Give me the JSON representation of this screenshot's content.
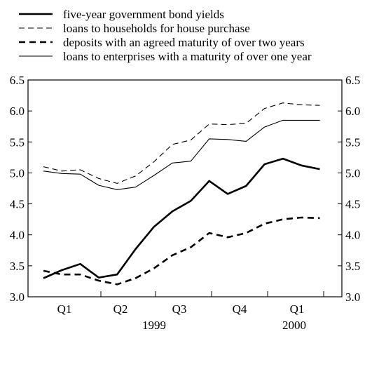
{
  "chart_data": {
    "type": "line",
    "title": "",
    "xlabel": "",
    "ylabel": "",
    "x_axis": {
      "quarter_labels": [
        "Q1",
        "Q2",
        "Q3",
        "Q4",
        "Q1"
      ],
      "year_labels": [
        "1999",
        "2000"
      ],
      "months": [
        "1999-01",
        "1999-02",
        "1999-03",
        "1999-04",
        "1999-05",
        "1999-06",
        "1999-07",
        "1999-08",
        "1999-09",
        "1999-10",
        "1999-11",
        "1999-12",
        "2000-01",
        "2000-02",
        "2000-03",
        "2000-04",
        "2000-05"
      ]
    },
    "y_axis": {
      "min": 3.0,
      "max": 6.5,
      "ticks": [
        "3.0",
        "3.5",
        "4.0",
        "4.5",
        "5.0",
        "5.5",
        "6.0",
        "6.5"
      ],
      "left_and_right": true
    },
    "grid": false,
    "legend_position": "top-left",
    "series": [
      {
        "name": "five-year government bond yields",
        "style": "thick-solid",
        "values": [
          3.3,
          3.43,
          3.53,
          3.31,
          3.36,
          3.77,
          4.13,
          4.38,
          4.55,
          4.87,
          4.66,
          4.79,
          5.14,
          5.23,
          5.12,
          5.06
        ]
      },
      {
        "name": "loans to households for house purchase",
        "style": "thin-dashed",
        "values": [
          5.1,
          5.03,
          5.05,
          4.91,
          4.83,
          4.95,
          5.18,
          5.46,
          5.53,
          5.79,
          5.78,
          5.8,
          6.04,
          6.13,
          6.1,
          6.09
        ]
      },
      {
        "name": "deposits with an agreed maturity of over two years",
        "style": "thick-dashed",
        "values": [
          3.42,
          3.36,
          3.36,
          3.26,
          3.2,
          3.3,
          3.46,
          3.67,
          3.8,
          4.03,
          3.96,
          4.03,
          4.18,
          4.25,
          4.28,
          4.27
        ]
      },
      {
        "name": "loans to enterprises with a maturity of over one year",
        "style": "thin-solid",
        "values": [
          5.03,
          4.99,
          4.98,
          4.8,
          4.73,
          4.77,
          4.96,
          5.16,
          5.19,
          5.55,
          5.54,
          5.51,
          5.74,
          5.85,
          5.85,
          5.85
        ]
      }
    ],
    "colors": {
      "line": "#000000",
      "background": "#ffffff"
    }
  }
}
